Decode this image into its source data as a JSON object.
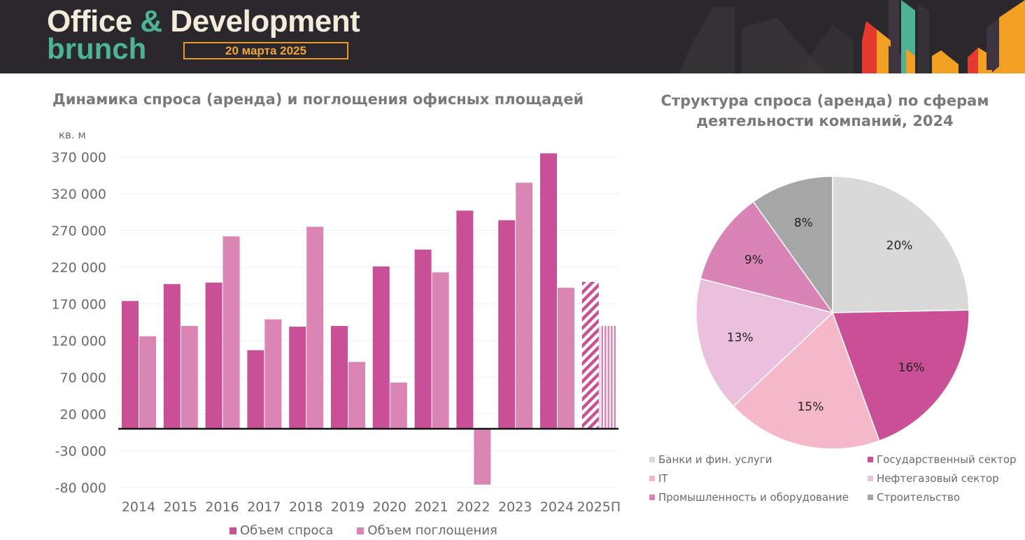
{
  "header": {
    "brand_part1": "Office ",
    "brand_amp": "&",
    "brand_part2": " Development",
    "brand_sub": "brunch",
    "date": "20 марта 2025"
  },
  "colors": {
    "header_bg": "#2a282c",
    "brand_cream": "#f3ebdc",
    "brand_green": "#4db394",
    "brand_orange": "#f0a43a",
    "demand": "#c95096",
    "absorption": "#db85b5"
  },
  "chart_data": [
    {
      "type": "bar",
      "title": "Динамика спроса (аренда) и поглощения офисных площадей",
      "ylabel": "кв. м",
      "xlabel": "",
      "categories": [
        "2014",
        "2015",
        "2016",
        "2017",
        "2018",
        "2019",
        "2020",
        "2021",
        "2022",
        "2023",
        "2024",
        "2025П"
      ],
      "series": [
        {
          "name": "Объем спроса",
          "color": "#c95096",
          "values": [
            174000,
            197000,
            199000,
            107000,
            139000,
            140000,
            221000,
            244000,
            297000,
            284000,
            375000,
            200000
          ],
          "forecast_hatched": [
            "2025П"
          ]
        },
        {
          "name": "Объем поглощения",
          "color": "#db85b5",
          "values": [
            126000,
            140000,
            262000,
            149000,
            275000,
            91000,
            63000,
            213000,
            -76000,
            335000,
            192000,
            140000
          ],
          "forecast_hatched": [
            "2025П"
          ]
        }
      ],
      "yticks": [
        370000,
        320000,
        270000,
        220000,
        170000,
        120000,
        70000,
        20000,
        -30000,
        -80000
      ],
      "ytick_labels": [
        "370 000",
        "320 000",
        "270 000",
        "220 000",
        "170 000",
        "120 000",
        "70 000",
        "20 000",
        "-30 000",
        "-80 000"
      ],
      "ylim": [
        -90000,
        380000
      ],
      "grid": true,
      "legend": "bottom"
    },
    {
      "type": "pie",
      "title": "Структура спроса (аренда) по сферам деятельности компаний, 2024",
      "title_line1": "Структура спроса (аренда) по сферам",
      "title_line2": "деятельности компаний, 2024",
      "slices": [
        {
          "label": "Банки и фин. услуги",
          "value": 20,
          "value_label": "20%",
          "color": "#d9d9d9"
        },
        {
          "label": "Государственный сектор",
          "value": 16,
          "value_label": "16%",
          "color": "#c95096"
        },
        {
          "label": "IT",
          "value": 15,
          "value_label": "15%",
          "color": "#f4b8c8"
        },
        {
          "label": "Нефтегазовый сектор",
          "value": 13,
          "value_label": "13%",
          "color": "#ebc0dc"
        },
        {
          "label": "Промышленность и оборудование",
          "value": 9,
          "value_label": "9%",
          "color": "#d983b6"
        },
        {
          "label": "Строительство",
          "value": 8,
          "value_label": "8%",
          "color": "#a6a6a6"
        }
      ],
      "legend": "bottom"
    }
  ]
}
